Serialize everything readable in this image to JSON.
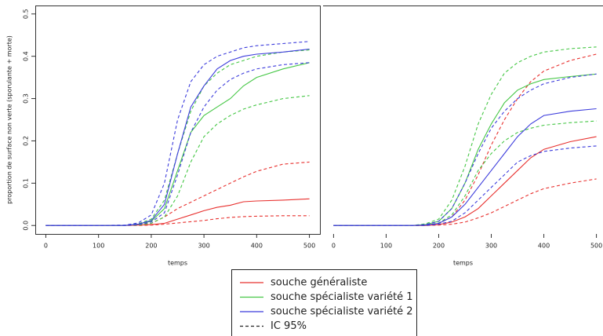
{
  "chart_data": [
    {
      "type": "line",
      "xlabel": "temps",
      "ylabel": "proportion de surface non verte (sporulante + morte)",
      "x": [
        0,
        100,
        150,
        175,
        200,
        225,
        250,
        275,
        300,
        325,
        350,
        375,
        400,
        450,
        500
      ],
      "xlim": [
        -20,
        520
      ],
      "xticks": [
        0,
        100,
        200,
        300,
        400,
        500
      ],
      "ylim": [
        -0.02,
        0.52
      ],
      "yticks": [
        {
          "value": 0,
          "label": "0.0"
        },
        0.1,
        0.2,
        0.3,
        0.4,
        0.5
      ],
      "ci_label": "IC 95%",
      "series": [
        {
          "name": "souche généraliste",
          "color": "#e8312f",
          "values": [
            0,
            0,
            0,
            0.001,
            0.002,
            0.005,
            0.015,
            0.025,
            0.035,
            0.043,
            0.048,
            0.056,
            0.058,
            0.06,
            0.063
          ],
          "upper": [
            0,
            0,
            0,
            0.002,
            0.005,
            0.02,
            0.04,
            0.055,
            0.07,
            0.085,
            0.1,
            0.115,
            0.128,
            0.145,
            0.15
          ],
          "lower": [
            0,
            0,
            0,
            0,
            0.001,
            0.003,
            0.006,
            0.009,
            0.012,
            0.016,
            0.019,
            0.021,
            0.022,
            0.023,
            0.023
          ]
        },
        {
          "name": "souche spécialiste variété 1",
          "color": "#45c745",
          "values": [
            0,
            0,
            0,
            0.003,
            0.01,
            0.04,
            0.13,
            0.22,
            0.26,
            0.28,
            0.3,
            0.33,
            0.35,
            0.37,
            0.385
          ],
          "upper": [
            0,
            0,
            0,
            0.004,
            0.015,
            0.06,
            0.17,
            0.27,
            0.33,
            0.36,
            0.38,
            0.39,
            0.4,
            0.41,
            0.415
          ],
          "lower": [
            0,
            0,
            0,
            0.001,
            0.005,
            0.02,
            0.07,
            0.15,
            0.21,
            0.24,
            0.26,
            0.275,
            0.285,
            0.3,
            0.307
          ]
        },
        {
          "name": "souche spécialiste variété 2",
          "color": "#3c3cdc",
          "values": [
            0,
            0,
            0,
            0.003,
            0.012,
            0.05,
            0.17,
            0.28,
            0.33,
            0.37,
            0.39,
            0.4,
            0.405,
            0.41,
            0.417
          ],
          "upper": [
            0,
            0,
            0.001,
            0.006,
            0.025,
            0.1,
            0.25,
            0.34,
            0.38,
            0.4,
            0.41,
            0.42,
            0.425,
            0.43,
            0.435
          ],
          "lower": [
            0,
            0,
            0,
            0.002,
            0.008,
            0.03,
            0.12,
            0.22,
            0.28,
            0.32,
            0.345,
            0.36,
            0.37,
            0.38,
            0.385
          ]
        }
      ]
    },
    {
      "type": "line",
      "xlabel": "temps",
      "x": [
        0,
        100,
        150,
        175,
        200,
        225,
        250,
        275,
        300,
        325,
        350,
        375,
        400,
        450,
        500
      ],
      "xlim": [
        -20,
        520
      ],
      "xticks": [
        0,
        100,
        200,
        300,
        400,
        500
      ],
      "ylim": [
        -0.02,
        0.52
      ],
      "series": [
        {
          "color": "#e8312f",
          "values": [
            0,
            0,
            0,
            0,
            0.002,
            0.008,
            0.02,
            0.04,
            0.07,
            0.1,
            0.13,
            0.16,
            0.18,
            0.198,
            0.21
          ],
          "upper": [
            0,
            0,
            0,
            0.001,
            0.005,
            0.02,
            0.06,
            0.12,
            0.19,
            0.25,
            0.3,
            0.34,
            0.365,
            0.39,
            0.405
          ],
          "lower": [
            0,
            0,
            0,
            0,
            0.001,
            0.003,
            0.008,
            0.018,
            0.03,
            0.045,
            0.06,
            0.075,
            0.087,
            0.1,
            0.11
          ]
        },
        {
          "color": "#45c745",
          "values": [
            0,
            0,
            0,
            0.002,
            0.01,
            0.04,
            0.1,
            0.18,
            0.24,
            0.29,
            0.32,
            0.335,
            0.345,
            0.352,
            0.358
          ],
          "upper": [
            0,
            0,
            0,
            0.004,
            0.015,
            0.06,
            0.14,
            0.24,
            0.31,
            0.36,
            0.385,
            0.4,
            0.41,
            0.418,
            0.422
          ],
          "lower": [
            0,
            0,
            0,
            0.001,
            0.006,
            0.025,
            0.07,
            0.13,
            0.17,
            0.2,
            0.22,
            0.23,
            0.237,
            0.243,
            0.247
          ]
        },
        {
          "color": "#3c3cdc",
          "values": [
            0,
            0,
            0,
            0.001,
            0.005,
            0.02,
            0.05,
            0.09,
            0.13,
            0.17,
            0.21,
            0.24,
            0.26,
            0.27,
            0.276
          ],
          "upper": [
            0,
            0,
            0,
            0.002,
            0.01,
            0.04,
            0.1,
            0.17,
            0.23,
            0.27,
            0.3,
            0.32,
            0.335,
            0.35,
            0.358
          ],
          "lower": [
            0,
            0,
            0,
            0,
            0.003,
            0.01,
            0.03,
            0.06,
            0.09,
            0.12,
            0.15,
            0.165,
            0.175,
            0.183,
            0.188
          ]
        }
      ]
    }
  ]
}
